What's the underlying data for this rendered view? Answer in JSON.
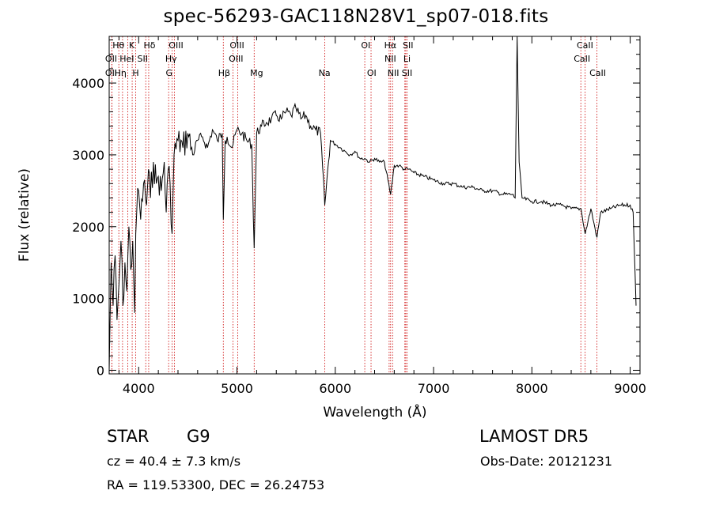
{
  "chart_data": {
    "type": "line",
    "title": "spec-56293-GAC118N28V1_sp07-018.fits",
    "xlabel": "Wavelength (Å)",
    "ylabel": "Flux (relative)",
    "xlim": [
      3700,
      9100
    ],
    "ylim": [
      -50,
      4650
    ],
    "x_ticks": [
      4000,
      5000,
      6000,
      7000,
      8000,
      9000
    ],
    "y_ticks": [
      0,
      1000,
      2000,
      3000,
      4000
    ],
    "grid": false,
    "series": [
      {
        "color": "#000000",
        "x": [
          3700,
          3720,
          3740,
          3760,
          3780,
          3800,
          3820,
          3840,
          3860,
          3880,
          3900,
          3920,
          3940,
          3960,
          3970,
          3980,
          4000,
          4020,
          4050,
          4080,
          4100,
          4120,
          4150,
          4180,
          4200,
          4230,
          4260,
          4280,
          4300,
          4320,
          4340,
          4360,
          4400,
          4450,
          4500,
          4550,
          4600,
          4650,
          4700,
          4750,
          4800,
          4850,
          4861,
          4880,
          4900,
          4950,
          5000,
          5050,
          5100,
          5150,
          5175,
          5200,
          5250,
          5300,
          5350,
          5400,
          5450,
          5500,
          5550,
          5600,
          5650,
          5700,
          5750,
          5800,
          5850,
          5893,
          5950,
          6000,
          6050,
          6100,
          6150,
          6200,
          6250,
          6300,
          6350,
          6400,
          6450,
          6500,
          6563,
          6600,
          6650,
          6700,
          6750,
          6800,
          6900,
          7000,
          7100,
          7200,
          7300,
          7400,
          7500,
          7600,
          7700,
          7800,
          7830,
          7850,
          7870,
          7900,
          8000,
          8100,
          8200,
          8300,
          8400,
          8500,
          8542,
          8600,
          8662,
          8700,
          8800,
          8900,
          9000,
          9030,
          9060
        ],
        "y": [
          0,
          1500,
          900,
          1600,
          700,
          1200,
          1800,
          900,
          1500,
          1100,
          2000,
          1400,
          1800,
          800,
          1900,
          2200,
          2500,
          2100,
          2600,
          2300,
          2800,
          2400,
          2900,
          2600,
          2700,
          2500,
          2900,
          2200,
          2800,
          2600,
          1900,
          3000,
          3200,
          3100,
          3300,
          3000,
          3200,
          3250,
          3100,
          3350,
          3200,
          3300,
          2100,
          3200,
          3250,
          3100,
          3350,
          3300,
          3200,
          3150,
          1700,
          3300,
          3400,
          3450,
          3500,
          3550,
          3500,
          3600,
          3550,
          3650,
          3500,
          3550,
          3400,
          3350,
          3300,
          2300,
          3200,
          3150,
          3100,
          3050,
          3000,
          3050,
          2950,
          2950,
          2900,
          2950,
          2900,
          2900,
          2450,
          2850,
          2850,
          2800,
          2800,
          2750,
          2700,
          2650,
          2600,
          2600,
          2550,
          2550,
          2500,
          2500,
          2450,
          2450,
          2400,
          4650,
          2900,
          2400,
          2350,
          2350,
          2300,
          2300,
          2250,
          2250,
          1900,
          2250,
          1850,
          2200,
          2250,
          2300,
          2300,
          2200,
          900
        ]
      }
    ],
    "lines": [
      {
        "label": "Hθ",
        "x": 3798
      },
      {
        "label": "OII",
        "x": 3727
      },
      {
        "label": "OII",
        "x": 3727
      },
      {
        "label": "Hη",
        "x": 3836
      },
      {
        "label": "HeI",
        "x": 3889
      },
      {
        "label": "K",
        "x": 3934
      },
      {
        "label": "H",
        "x": 3969
      },
      {
        "label": "Hδ",
        "x": 4102
      },
      {
        "label": "SII",
        "x": 4072
      },
      {
        "label": "Hγ",
        "x": 4341
      },
      {
        "label": "G",
        "x": 4305
      },
      {
        "label": "OIII",
        "x": 4363
      },
      {
        "label": "Hβ",
        "x": 4861
      },
      {
        "label": "OIII",
        "x": 4959
      },
      {
        "label": "OIII",
        "x": 5007
      },
      {
        "label": "Mg",
        "x": 5175
      },
      {
        "label": "Na",
        "x": 5893
      },
      {
        "label": "OI",
        "x": 6300
      },
      {
        "label": "OI",
        "x": 6364
      },
      {
        "label": "Hα",
        "x": 6563
      },
      {
        "label": "NII",
        "x": 6548
      },
      {
        "label": "NII",
        "x": 6583
      },
      {
        "label": "SII",
        "x": 6717
      },
      {
        "label": "Li",
        "x": 6708
      },
      {
        "label": "SII",
        "x": 6731
      },
      {
        "label": "CaII",
        "x": 8542
      },
      {
        "label": "CaII",
        "x": 8498
      },
      {
        "label": "CaII",
        "x": 8662
      }
    ],
    "line_labels": [
      {
        "text": "Hθ",
        "x": 3795,
        "row": 0
      },
      {
        "text": "K",
        "x": 3930,
        "row": 0
      },
      {
        "text": "Hδ",
        "x": 4110,
        "row": 0
      },
      {
        "text": "OIII",
        "x": 4380,
        "row": 0
      },
      {
        "text": "OIII",
        "x": 5000,
        "row": 0
      },
      {
        "text": "OI",
        "x": 6310,
        "row": 0
      },
      {
        "text": "Hα",
        "x": 6560,
        "row": 0
      },
      {
        "text": "SII",
        "x": 6740,
        "row": 0
      },
      {
        "text": "CaII",
        "x": 8540,
        "row": 0
      },
      {
        "text": "OII",
        "x": 3720,
        "row": 1
      },
      {
        "text": "HeI",
        "x": 3880,
        "row": 1
      },
      {
        "text": "SII",
        "x": 4040,
        "row": 1
      },
      {
        "text": "Hγ",
        "x": 4330,
        "row": 1
      },
      {
        "text": "OIII",
        "x": 4990,
        "row": 1
      },
      {
        "text": "NII",
        "x": 6560,
        "row": 1
      },
      {
        "text": "Li",
        "x": 6730,
        "row": 1
      },
      {
        "text": "CaII",
        "x": 8510,
        "row": 1
      },
      {
        "text": "OII",
        "x": 3720,
        "row": 2
      },
      {
        "text": "Hη",
        "x": 3815,
        "row": 2
      },
      {
        "text": "H",
        "x": 3970,
        "row": 2
      },
      {
        "text": "G",
        "x": 4310,
        "row": 2
      },
      {
        "text": "Hβ",
        "x": 4870,
        "row": 2
      },
      {
        "text": "Mg",
        "x": 5200,
        "row": 2
      },
      {
        "text": "Na",
        "x": 5890,
        "row": 2
      },
      {
        "text": "OI",
        "x": 6370,
        "row": 2
      },
      {
        "text": "NII",
        "x": 6590,
        "row": 2
      },
      {
        "text": "SII",
        "x": 6730,
        "row": 2
      },
      {
        "text": "CaII",
        "x": 8670,
        "row": 2
      }
    ],
    "line_color": "#cc0000"
  },
  "info": {
    "class": "STAR",
    "subclass": "G9",
    "survey": "LAMOST DR5",
    "cz": "cz = 40.4 ± 7.3 km/s",
    "obs_date": "Obs-Date: 20121231",
    "radec": "RA = 119.53300, DEC =  26.24753"
  }
}
